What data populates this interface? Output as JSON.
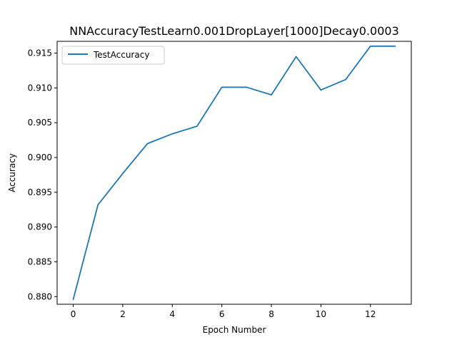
{
  "chart_data": {
    "type": "line",
    "title": "NNAccuracyTestLearn0.001DropLayer[1000]Decay0.0003",
    "xlabel": "Epoch Number",
    "ylabel": "Accuracy",
    "xlim": [
      -0.65,
      13.65
    ],
    "ylim": [
      0.8789,
      0.9167
    ],
    "xticks": [
      0,
      2,
      4,
      6,
      8,
      10,
      12
    ],
    "xtick_labels": [
      "0",
      "2",
      "4",
      "6",
      "8",
      "10",
      "12"
    ],
    "yticks": [
      0.88,
      0.885,
      0.89,
      0.895,
      0.9,
      0.905,
      0.91,
      0.915
    ],
    "ytick_labels": [
      "0.880",
      "0.885",
      "0.890",
      "0.895",
      "0.900",
      "0.905",
      "0.910",
      "0.915"
    ],
    "grid": false,
    "legend_position": "top-left",
    "series": [
      {
        "name": "TestAccuracy",
        "color": "#1f77b4",
        "x": [
          0,
          1,
          2,
          3,
          4,
          5,
          6,
          7,
          8,
          9,
          10,
          11,
          12,
          13
        ],
        "values": [
          0.8796,
          0.8932,
          0.8977,
          0.902,
          0.9034,
          0.9045,
          0.9101,
          0.9101,
          0.909,
          0.9145,
          0.9097,
          0.9112,
          0.916,
          0.916
        ]
      }
    ]
  }
}
